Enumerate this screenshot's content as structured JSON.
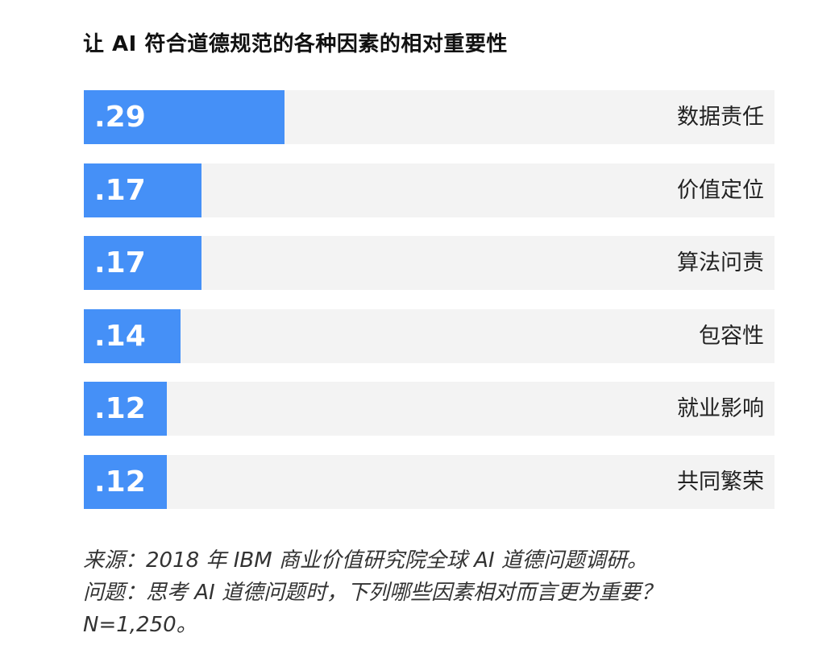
{
  "colors": {
    "bar": "#4590f7",
    "track": "#f3f3f3"
  },
  "chart_data": {
    "type": "bar",
    "orientation": "horizontal",
    "title": "让 AI 符合道德规范的各种因素的相对重要性",
    "categories": [
      "数据责任",
      "价值定位",
      "算法问责",
      "包容性",
      "就业影响",
      "共同繁荣"
    ],
    "values": [
      0.29,
      0.17,
      0.17,
      0.14,
      0.12,
      0.12
    ],
    "value_labels": [
      ".29",
      ".17",
      ".17",
      ".14",
      ".12",
      ".12"
    ],
    "xlim": [
      0,
      1
    ],
    "grid": false,
    "legend": "none"
  },
  "footnotes": {
    "source": "来源：2018 年 IBM 商业价值研究院全球 AI 道德问题调研。",
    "question": "问题：思考 AI 道德问题时，下列哪些因素相对而言更为重要？",
    "sample": "N=1,250。"
  }
}
